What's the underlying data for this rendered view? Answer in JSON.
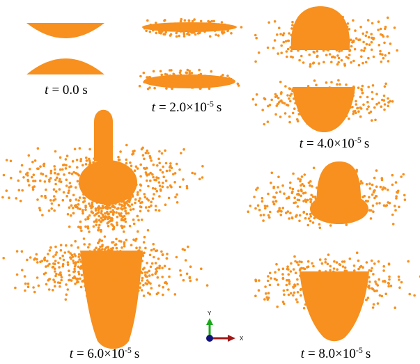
{
  "panels": [
    {
      "caption": {
        "variable": "t",
        "text": "= 0.0 s"
      }
    },
    {
      "caption": {
        "variable": "t",
        "text": "= 2.0×10",
        "exponent": "-5",
        "unit": "s"
      }
    },
    {
      "caption": {
        "variable": "t",
        "text": "= 4.0×10",
        "exponent": "-5",
        "unit": "s"
      }
    },
    {
      "caption": {
        "variable": "t",
        "text": "= 6.0×10",
        "exponent": "-5",
        "unit": "s"
      }
    },
    {
      "caption": {
        "variable": "t",
        "text": "= 8.0×10",
        "exponent": "-5",
        "unit": "s"
      }
    }
  ],
  "axes_triad": {
    "y_label": "Y",
    "x_label": "X"
  }
}
